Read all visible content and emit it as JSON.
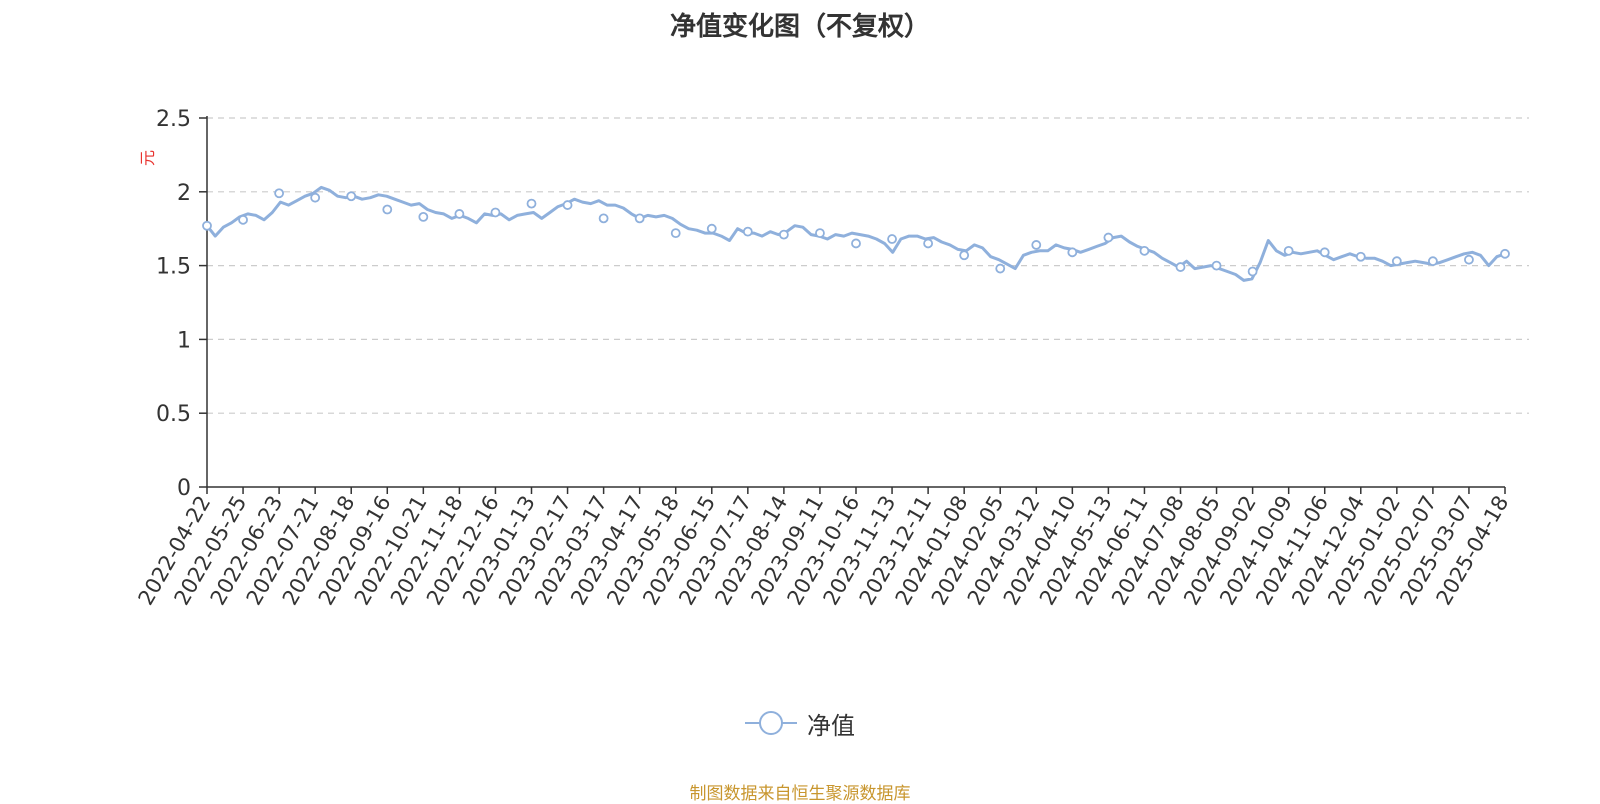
{
  "title": "净值变化图（不复权）",
  "source_note": "制图数据来自恒生聚源数据库",
  "colors": {
    "line": "#8fb0dc",
    "axis": "#333333",
    "grid": "#cccccc",
    "ylabel": "#e8322e",
    "source": "#c8962e"
  },
  "chart_data": {
    "type": "line",
    "title": "净值变化图（不复权）",
    "ylabel": "元",
    "ylim": [
      0,
      2.5
    ],
    "yticks": [
      "0",
      "0.5",
      "1",
      "1.5",
      "2",
      "2.5"
    ],
    "grid": true,
    "legend_position": "bottom-center",
    "xtick_labels": [
      "2022-04-22",
      "2022-05-25",
      "2022-06-23",
      "2022-07-21",
      "2022-08-18",
      "2022-09-16",
      "2022-10-21",
      "2022-11-18",
      "2022-12-16",
      "2023-01-13",
      "2023-02-17",
      "2023-03-17",
      "2023-04-17",
      "2023-05-18",
      "2023-06-15",
      "2023-07-17",
      "2023-08-14",
      "2023-09-11",
      "2023-10-16",
      "2023-11-13",
      "2023-12-11",
      "2024-01-08",
      "2024-02-05",
      "2024-03-12",
      "2024-04-10",
      "2024-05-13",
      "2024-06-11",
      "2024-07-08",
      "2024-08-05",
      "2024-09-02",
      "2024-10-09",
      "2024-11-06",
      "2024-12-04",
      "2025-01-02",
      "2025-02-07",
      "2025-03-07",
      "2025-04-18"
    ],
    "series": [
      {
        "name": "净值",
        "x": [
          "2022-04-22",
          "2022-05-25",
          "2022-06-23",
          "2022-07-21",
          "2022-08-18",
          "2022-09-16",
          "2022-10-21",
          "2022-11-18",
          "2022-12-16",
          "2023-01-13",
          "2023-02-17",
          "2023-03-17",
          "2023-04-17",
          "2023-05-18",
          "2023-06-15",
          "2023-07-17",
          "2023-08-14",
          "2023-09-11",
          "2023-10-16",
          "2023-11-13",
          "2023-12-11",
          "2024-01-08",
          "2024-02-05",
          "2024-03-12",
          "2024-04-10",
          "2024-05-13",
          "2024-06-11",
          "2024-07-08",
          "2024-08-05",
          "2024-09-02",
          "2024-10-09",
          "2024-11-06",
          "2024-12-04",
          "2025-01-02",
          "2025-02-07",
          "2025-03-07",
          "2025-04-18"
        ],
        "values": [
          1.77,
          1.81,
          1.99,
          1.96,
          1.97,
          1.88,
          1.83,
          1.85,
          1.86,
          1.92,
          1.91,
          1.82,
          1.82,
          1.72,
          1.75,
          1.73,
          1.71,
          1.72,
          1.65,
          1.68,
          1.65,
          1.57,
          1.48,
          1.64,
          1.59,
          1.69,
          1.6,
          1.49,
          1.5,
          1.46,
          1.6,
          1.59,
          1.56,
          1.53,
          1.53,
          1.54,
          1.58
        ]
      }
    ],
    "dense_path": [
      1.77,
      1.7,
      1.76,
      1.79,
      1.83,
      1.85,
      1.84,
      1.81,
      1.86,
      1.93,
      1.91,
      1.94,
      1.97,
      1.99,
      2.03,
      2.01,
      1.97,
      1.96,
      1.97,
      1.95,
      1.96,
      1.98,
      1.97,
      1.95,
      1.93,
      1.91,
      1.92,
      1.88,
      1.86,
      1.85,
      1.82,
      1.84,
      1.82,
      1.79,
      1.85,
      1.84,
      1.85,
      1.81,
      1.84,
      1.85,
      1.86,
      1.82,
      1.86,
      1.9,
      1.92,
      1.95,
      1.93,
      1.92,
      1.94,
      1.91,
      1.91,
      1.89,
      1.85,
      1.82,
      1.84,
      1.83,
      1.84,
      1.82,
      1.78,
      1.75,
      1.74,
      1.72,
      1.72,
      1.7,
      1.67,
      1.75,
      1.72,
      1.72,
      1.7,
      1.73,
      1.71,
      1.73,
      1.77,
      1.76,
      1.71,
      1.7,
      1.68,
      1.71,
      1.7,
      1.72,
      1.71,
      1.7,
      1.68,
      1.65,
      1.59,
      1.68,
      1.7,
      1.7,
      1.68,
      1.69,
      1.66,
      1.64,
      1.61,
      1.6,
      1.64,
      1.62,
      1.56,
      1.54,
      1.51,
      1.48,
      1.57,
      1.59,
      1.6,
      1.6,
      1.64,
      1.62,
      1.61,
      1.59,
      1.61,
      1.63,
      1.65,
      1.69,
      1.7,
      1.66,
      1.63,
      1.61,
      1.59,
      1.55,
      1.52,
      1.49,
      1.53,
      1.48,
      1.49,
      1.5,
      1.48,
      1.46,
      1.44,
      1.4,
      1.41,
      1.52,
      1.67,
      1.6,
      1.57,
      1.59,
      1.58,
      1.59,
      1.6,
      1.57,
      1.54,
      1.56,
      1.58,
      1.56,
      1.55,
      1.55,
      1.53,
      1.5,
      1.51,
      1.52,
      1.53,
      1.52,
      1.51,
      1.52,
      1.54,
      1.56,
      1.58,
      1.59,
      1.57,
      1.5,
      1.56,
      1.58
    ]
  }
}
